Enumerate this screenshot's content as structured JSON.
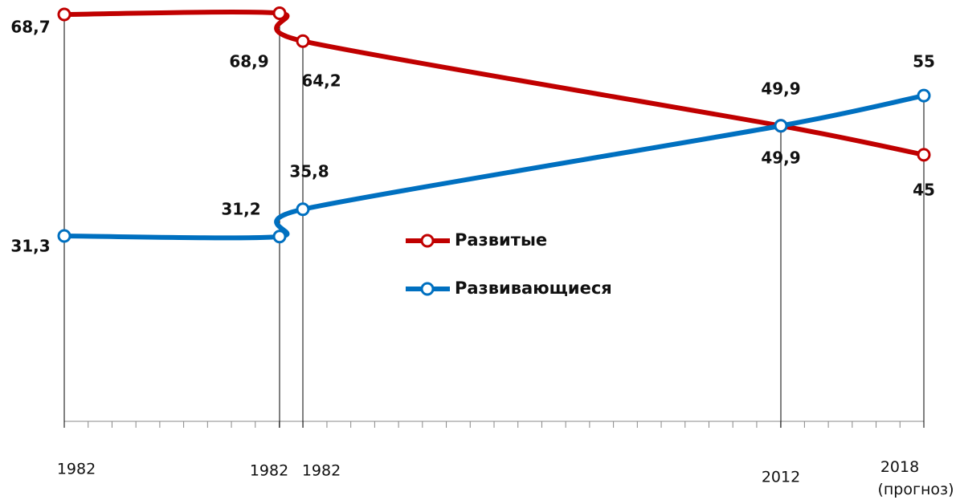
{
  "chart_data": {
    "type": "line",
    "categories": [
      "1982",
      "1982",
      "1982",
      "2012",
      "2018\n(прогноз)"
    ],
    "ylim": [
      0,
      70
    ],
    "series": [
      {
        "name": "Развитые",
        "color": "#c00000",
        "values": [
          68.7,
          68.9,
          64.2,
          49.9,
          45
        ],
        "value_labels": [
          "68,7",
          "68,9",
          "64,2",
          "49,9",
          "45"
        ]
      },
      {
        "name": "Развивающиеся",
        "color": "#0070c0",
        "values": [
          31.3,
          31.2,
          35.8,
          49.9,
          55
        ],
        "value_labels": [
          "31,3",
          "31,2",
          "35,8",
          "49,9",
          "55"
        ]
      }
    ]
  }
}
